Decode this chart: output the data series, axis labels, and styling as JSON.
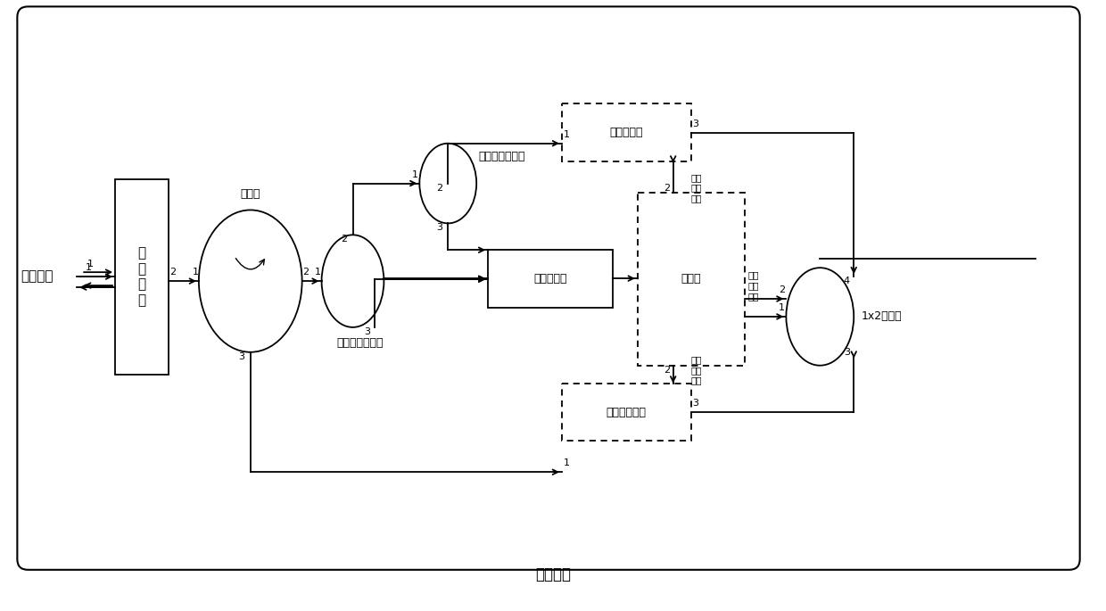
{
  "fig_width": 12.4,
  "fig_height": 6.85,
  "bg": "#ffffff",
  "lc": "#000000",
  "bottom_label": "空间载体",
  "laser_label": "激光雷达",
  "antenna_label": "光\n学\n天\n线",
  "circulator_label": "环形器",
  "fc1_label": "第一光纤耦合器",
  "fc2_label": "第二光纤耦合器",
  "att_label": "可调衰减器",
  "pd_label": "光电探测器",
  "proc_label": "处理器",
  "amp_label": "可调光放大器",
  "sw_label": "1x2光开关",
  "ctrl1_label": "第一\n控制\n指令",
  "ctrl2_label": "第二\n控制\n指令",
  "ctrl3_label": "第三\n控制\n指令"
}
